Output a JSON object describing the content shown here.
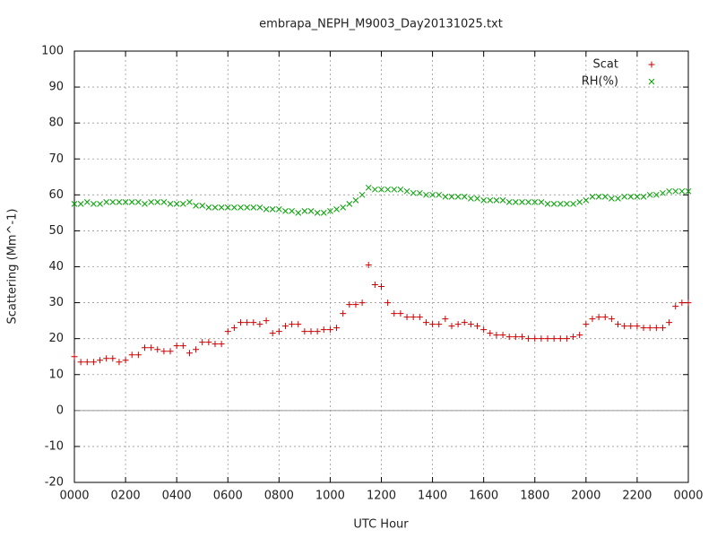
{
  "chart_data": {
    "type": "scatter",
    "title": "embrapa_NEPH_M9003_Day20131025.txt",
    "xlabel": "UTC Hour",
    "ylabel": "Scattering (Mm^-1)",
    "grid": true,
    "legend": "top-right",
    "xlim": [
      0,
      24
    ],
    "ylim": [
      -20,
      100
    ],
    "xticks": [
      {
        "value": 0,
        "label": "0000"
      },
      {
        "value": 2,
        "label": "0200"
      },
      {
        "value": 4,
        "label": "0400"
      },
      {
        "value": 6,
        "label": "0600"
      },
      {
        "value": 8,
        "label": "0800"
      },
      {
        "value": 10,
        "label": "1000"
      },
      {
        "value": 12,
        "label": "1200"
      },
      {
        "value": 14,
        "label": "1400"
      },
      {
        "value": 16,
        "label": "1600"
      },
      {
        "value": 18,
        "label": "1800"
      },
      {
        "value": 20,
        "label": "2000"
      },
      {
        "value": 22,
        "label": "2200"
      },
      {
        "value": 24,
        "label": "0000"
      }
    ],
    "yticks": [
      -20,
      -10,
      0,
      10,
      20,
      30,
      40,
      50,
      60,
      70,
      80,
      90,
      100
    ],
    "x": [
      0,
      0.25,
      0.5,
      0.75,
      1,
      1.25,
      1.5,
      1.75,
      2,
      2.25,
      2.5,
      2.75,
      3,
      3.25,
      3.5,
      3.75,
      4,
      4.25,
      4.5,
      4.75,
      5,
      5.25,
      5.5,
      5.75,
      6,
      6.25,
      6.5,
      6.75,
      7,
      7.25,
      7.5,
      7.75,
      8,
      8.25,
      8.5,
      8.75,
      9,
      9.25,
      9.5,
      9.75,
      10,
      10.25,
      10.5,
      10.75,
      11,
      11.25,
      11.5,
      11.75,
      12,
      12.25,
      12.5,
      12.75,
      13,
      13.25,
      13.5,
      13.75,
      14,
      14.25,
      14.5,
      14.75,
      15,
      15.25,
      15.5,
      15.75,
      16,
      16.25,
      16.5,
      16.75,
      17,
      17.25,
      17.5,
      17.75,
      18,
      18.25,
      18.5,
      18.75,
      19,
      19.25,
      19.5,
      19.75,
      20,
      20.25,
      20.5,
      20.75,
      21,
      21.25,
      21.5,
      21.75,
      22,
      22.25,
      22.5,
      22.75,
      23,
      23.25,
      23.5,
      23.75,
      24
    ],
    "series": [
      {
        "name": "Scat",
        "color": "#cc0000",
        "marker": "plus",
        "values": [
          15,
          13.5,
          13.5,
          13.5,
          14,
          14.5,
          14.5,
          13.5,
          14,
          15.5,
          15.5,
          17.5,
          17.5,
          17,
          16.5,
          16.5,
          18,
          18,
          16,
          17,
          19,
          19,
          18.5,
          18.5,
          22,
          23,
          24.5,
          24.5,
          24.5,
          24,
          25,
          21.5,
          22,
          23.5,
          24,
          24,
          22,
          22,
          22,
          22.5,
          22.5,
          23,
          27,
          29.5,
          29.5,
          30,
          40.5,
          35,
          34.5,
          30,
          27,
          27,
          26,
          26,
          26,
          24.5,
          24,
          24,
          25.5,
          23.5,
          24,
          24.5,
          24,
          23.5,
          22.5,
          21.5,
          21,
          21,
          20.5,
          20.5,
          20.5,
          20,
          20,
          20,
          20,
          20,
          20,
          20,
          20.5,
          21,
          24,
          25.5,
          26,
          26,
          25.5,
          24,
          23.5,
          23.5,
          23.5,
          23,
          23,
          23,
          23,
          24.5,
          29,
          30,
          30
        ]
      },
      {
        "name": "RH(%)",
        "color": "#00a000",
        "marker": "cross",
        "values": [
          57.5,
          57.5,
          58,
          57.5,
          57.5,
          58,
          58,
          58,
          58,
          58,
          58,
          57.5,
          58,
          58,
          58,
          57.5,
          57.5,
          57.5,
          58,
          57,
          57,
          56.5,
          56.5,
          56.5,
          56.5,
          56.5,
          56.5,
          56.5,
          56.5,
          56.5,
          56,
          56,
          56,
          55.5,
          55.5,
          55,
          55.5,
          55.5,
          55,
          55,
          55.5,
          56,
          56.5,
          57.5,
          58.5,
          60,
          62,
          61.5,
          61.5,
          61.5,
          61.5,
          61.5,
          61,
          60.5,
          60.5,
          60,
          60,
          60,
          59.5,
          59.5,
          59.5,
          59.5,
          59,
          59,
          58.5,
          58.5,
          58.5,
          58.5,
          58,
          58,
          58,
          58,
          58,
          58,
          57.5,
          57.5,
          57.5,
          57.5,
          57.5,
          58,
          58.5,
          59.5,
          59.5,
          59.5,
          59,
          59,
          59.5,
          59.5,
          59.5,
          59.5,
          60,
          60,
          60.5,
          61,
          61,
          61,
          61
        ]
      }
    ]
  }
}
